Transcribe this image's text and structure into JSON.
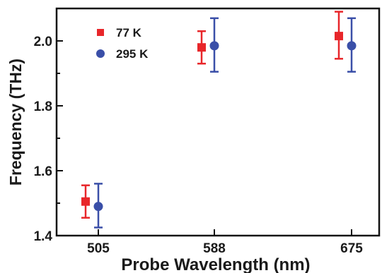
{
  "chart_data": {
    "type": "scatter",
    "xlabel": "Probe Wavelength (nm)",
    "ylabel": "Frequency (THz)",
    "categories": [
      "505",
      "588",
      "675"
    ],
    "yticks": [
      "1.4",
      "1.6",
      "1.8",
      "2.0"
    ],
    "ylim": [
      1.4,
      2.1
    ],
    "grid": false,
    "legend_position": "top-left",
    "series": [
      {
        "name": "77 K",
        "marker": "square",
        "color": "#e8262a",
        "values": [
          1.505,
          1.98,
          2.015
        ],
        "err_low": [
          1.455,
          1.93,
          1.945
        ],
        "err_high": [
          1.555,
          2.03,
          2.09
        ]
      },
      {
        "name": "295 K",
        "marker": "circle",
        "color": "#3a4fa8",
        "values": [
          1.49,
          1.985,
          1.985
        ],
        "err_low": [
          1.425,
          1.905,
          1.905
        ],
        "err_high": [
          1.56,
          2.07,
          2.07
        ]
      }
    ]
  }
}
